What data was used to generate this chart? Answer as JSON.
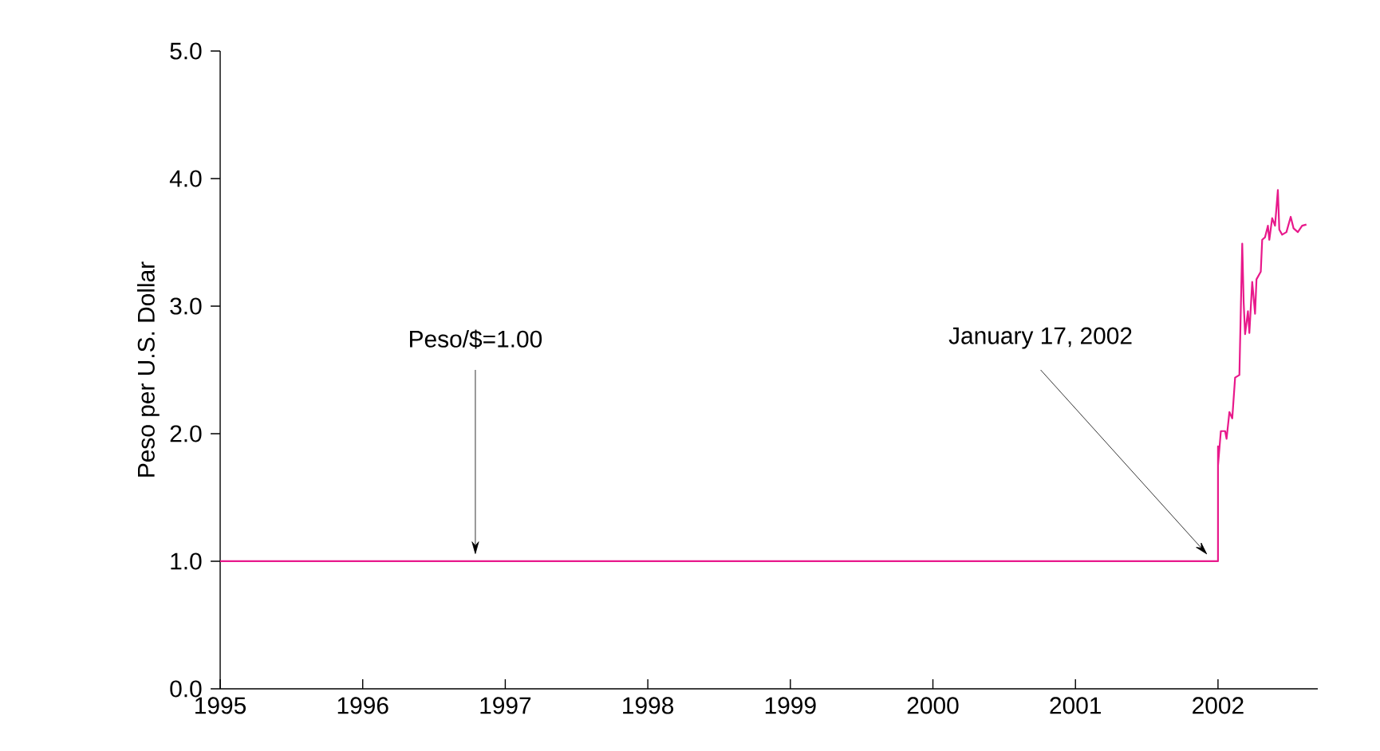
{
  "chart_data": {
    "type": "line",
    "ylabel": "Peso per U.S. Dollar",
    "x": [
      1995,
      2002.0,
      2002.0,
      2002.0,
      2002.02,
      2002.05,
      2002.06,
      2002.08,
      2002.1,
      2002.12,
      2002.15,
      2002.17,
      2002.18,
      2002.19,
      2002.21,
      2002.22,
      2002.24,
      2002.26,
      2002.27,
      2002.3,
      2002.31,
      2002.33,
      2002.35,
      2002.36,
      2002.38,
      2002.4,
      2002.42,
      2002.43,
      2002.45,
      2002.48,
      2002.51,
      2002.53,
      2002.56,
      2002.59,
      2002.62
    ],
    "values": [
      1.0,
      1.0,
      1.9,
      1.75,
      2.02,
      2.02,
      1.96,
      2.17,
      2.12,
      2.44,
      2.46,
      3.49,
      3.03,
      2.78,
      2.96,
      2.79,
      3.19,
      2.94,
      3.21,
      3.27,
      3.52,
      3.54,
      3.63,
      3.52,
      3.69,
      3.63,
      3.91,
      3.6,
      3.56,
      3.58,
      3.7,
      3.61,
      3.58,
      3.63,
      3.64
    ],
    "color": "#e8198b",
    "xlim": [
      1995,
      2002.7
    ],
    "xticks": [
      1995,
      1996,
      1997,
      1998,
      1999,
      2000,
      2001,
      2002
    ],
    "ylim": [
      0,
      5
    ],
    "yticks": [
      {
        "value": 0,
        "label": "0.0"
      },
      {
        "value": 1,
        "label": "1.0"
      },
      {
        "value": 2,
        "label": "2.0"
      },
      {
        "value": 3,
        "label": "3.0"
      },
      {
        "value": 4,
        "label": "4.0"
      },
      {
        "value": 5,
        "label": "5.0"
      }
    ],
    "annotations": [
      "Peso/$=1.00",
      "January 17, 2002"
    ],
    "grid": false,
    "marker": "none",
    "line_style": "solid"
  }
}
